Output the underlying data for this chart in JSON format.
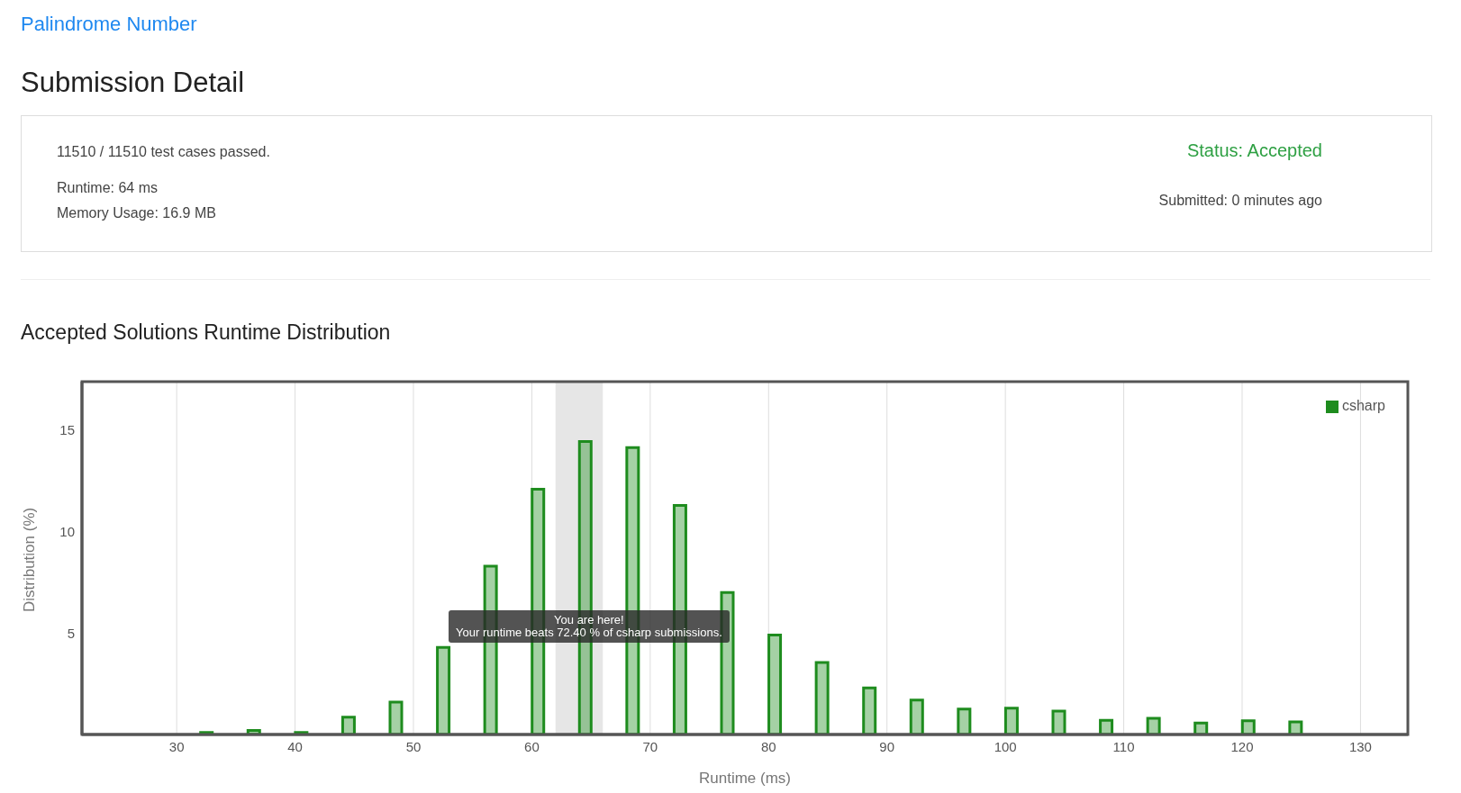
{
  "chart_data": {
    "type": "bar",
    "title": "Accepted Solutions Runtime Distribution",
    "xlabel": "Runtime (ms)",
    "ylabel": "Distribution (%)",
    "annotations": [
      "Palindrome Number",
      "Submission Detail",
      "11510 / 11510 test cases passed.",
      "Runtime: 64 ms",
      "Memory Usage: 16.9 MB",
      "Status: Accepted",
      "Submitted: 0 minutes ago",
      "You are here!\nYour runtime beats 72.40 % of csharp submissions."
    ],
    "x": [
      32.5,
      36.5,
      40.5,
      44.5,
      48.5,
      52.5,
      56.5,
      60.5,
      64.5,
      68.5,
      72.5,
      76.5,
      80.5,
      84.5,
      88.5,
      92.5,
      96.5,
      100.5,
      104.5,
      108.5,
      112.5,
      116.5,
      120.5,
      124.5
    ],
    "series": [
      {
        "name": "csharp",
        "color": "#1e8c1e",
        "values": [
          0.1,
          0.2,
          0.1,
          0.85,
          1.6,
          4.3,
          8.3,
          12.1,
          14.45,
          14.15,
          11.3,
          7.0,
          4.9,
          3.55,
          2.3,
          1.7,
          1.25,
          1.3,
          1.15,
          0.7,
          0.8,
          0.57,
          0.68,
          0.62
        ]
      }
    ],
    "bands": [
      {
        "axis": "x",
        "from": 62,
        "to": 66,
        "color": "#e6e6e6"
      }
    ],
    "xlim": [
      22,
      134
    ],
    "xticks": [
      30,
      40,
      50,
      60,
      70,
      80,
      90,
      100,
      110,
      120,
      130
    ],
    "ylim": [
      0,
      17.4
    ],
    "yticks": [
      5,
      10,
      15
    ],
    "grid": true,
    "legend": "top right"
  }
}
